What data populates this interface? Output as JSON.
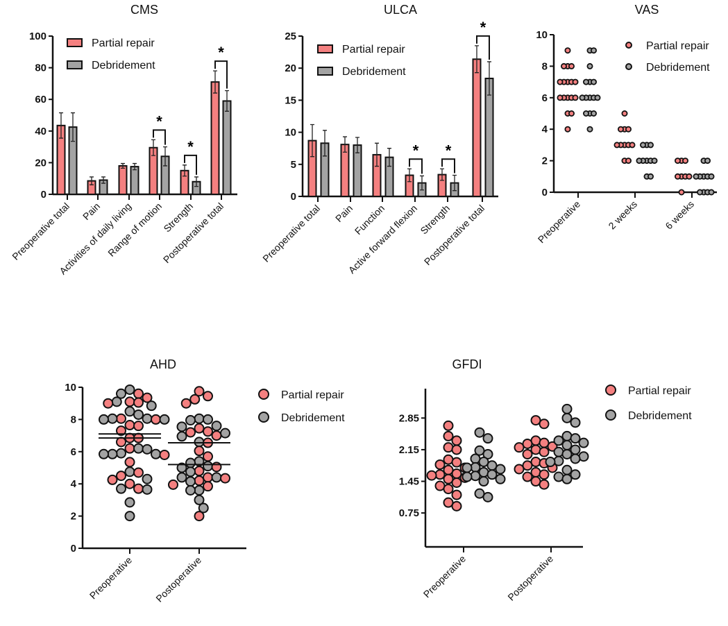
{
  "colors": {
    "partial_repair": "#f48080",
    "debridement": "#a3a3a3",
    "outline": "#111111"
  },
  "legend": [
    "Partial repair",
    "Debridement"
  ],
  "significance_mark": "*",
  "chart_data": [
    {
      "id": "cms",
      "type": "bar",
      "title": "CMS",
      "ylim": [
        0,
        100
      ],
      "yticks": [
        0,
        20,
        40,
        60,
        80,
        100
      ],
      "categories": [
        "Preoperative total",
        "Pain",
        "Activities of daily living",
        "Range of motion",
        "Strength",
        "Postoperative total"
      ],
      "series": [
        {
          "name": "Partial repair",
          "values": [
            43.5,
            8.5,
            18,
            29.5,
            15,
            71
          ],
          "errors": [
            8,
            2.5,
            1.5,
            5,
            3.5,
            7
          ]
        },
        {
          "name": "Debridement",
          "values": [
            42.5,
            9,
            17.5,
            24,
            8,
            59
          ],
          "errors": [
            9,
            2,
            2,
            6,
            3,
            6.5
          ]
        }
      ],
      "significant": [
        false,
        false,
        false,
        true,
        true,
        true
      ]
    },
    {
      "id": "ulca",
      "type": "bar",
      "title": "ULCA",
      "ylim": [
        0,
        25
      ],
      "yticks": [
        0,
        5,
        10,
        15,
        20,
        25
      ],
      "categories": [
        "Preoperative total",
        "Pain",
        "Function",
        "Active forward flexion",
        "Strength",
        "Postoperative total"
      ],
      "series": [
        {
          "name": "Partial repair",
          "values": [
            8.7,
            8.1,
            6.5,
            3.3,
            3.4,
            21.4
          ],
          "errors": [
            2.5,
            1.2,
            1.8,
            1.0,
            0.9,
            2.1
          ]
        },
        {
          "name": "Debridement",
          "values": [
            8.3,
            8.0,
            6.1,
            2.1,
            2.1,
            18.4
          ],
          "errors": [
            2.0,
            1.2,
            1.4,
            1.1,
            1.2,
            2.6
          ]
        }
      ],
      "significant": [
        false,
        false,
        false,
        true,
        true,
        true
      ]
    },
    {
      "id": "vas",
      "type": "scatter",
      "title": "VAS",
      "ylim": [
        0,
        10
      ],
      "yticks": [
        0,
        2,
        4,
        6,
        8,
        10
      ],
      "categories": [
        "Preoperative",
        "2 weeks",
        "6 weeks"
      ],
      "series": [
        {
          "name": "Partial repair",
          "values": [
            [
              9,
              8,
              8,
              8,
              7,
              7,
              7,
              7,
              7,
              6,
              6,
              6,
              6,
              6,
              5,
              5,
              4
            ],
            [
              5,
              4,
              4,
              4,
              3,
              3,
              3,
              3,
              3,
              2,
              2
            ],
            [
              2,
              2,
              2,
              1,
              1,
              1,
              1,
              0
            ]
          ]
        },
        {
          "name": "Debridement",
          "values": [
            [
              9,
              9,
              8,
              7,
              7,
              7,
              6,
              6,
              6,
              6,
              6,
              5,
              5,
              5,
              4
            ],
            [
              3,
              3,
              3,
              2,
              2,
              2,
              2,
              2,
              1,
              1
            ],
            [
              2,
              2,
              1,
              1,
              1,
              1,
              1,
              0,
              0,
              0,
              0
            ]
          ]
        }
      ]
    },
    {
      "id": "ahd",
      "type": "scatter",
      "title": "AHD",
      "ylim": [
        0,
        10
      ],
      "yticks": [
        0,
        2,
        4,
        6,
        8,
        10
      ],
      "categories": [
        "Preoperative",
        "Postoperative"
      ],
      "series": [
        {
          "name": "Partial repair",
          "means": [
            6.85,
            6.55
          ],
          "values": [
            [
              9.6,
              9.35,
              9.1,
              9.05,
              9.0,
              8.05,
              8.0,
              7.65,
              7.6,
              7.3,
              6.85,
              6.85,
              6.6,
              6.2,
              5.8,
              5.35,
              4.7,
              4.5,
              4.25,
              4.0,
              3.7
            ],
            [
              9.75,
              9.45,
              9.25,
              9.0,
              7.45,
              7.25,
              7.2,
              7.0,
              6.55,
              6.05,
              5.7,
              5.05,
              4.8,
              4.4,
              4.35,
              4.2,
              3.95,
              3.85,
              2.0
            ]
          ]
        },
        {
          "name": "Debridement",
          "means": [
            7.1,
            5.2
          ],
          "values": [
            [
              9.85,
              9.6,
              9.1,
              8.85,
              8.5,
              8.3,
              8.05,
              8.0,
              8.0,
              8.05,
              6.15,
              6.2,
              5.85,
              5.85,
              5.9,
              5.85,
              4.75,
              4.3,
              3.7,
              3.65,
              2.85,
              2.0
            ],
            [
              8.05,
              8.0,
              7.95,
              7.6,
              7.55,
              7.15,
              6.95,
              6.6,
              5.4,
              5.3,
              5.1,
              5.0,
              4.75,
              4.4,
              4.4,
              4.15,
              3.6,
              3.6,
              3.0,
              2.5
            ]
          ]
        }
      ]
    },
    {
      "id": "gfdi",
      "type": "scatter",
      "title": "GFDI",
      "ylim": [
        0,
        3.5
      ],
      "yticks": [
        0.75,
        1.45,
        2.15,
        2.85
      ],
      "categories": [
        "Preoperative",
        "Postoperative"
      ],
      "series": [
        {
          "name": "Partial repair",
          "values": [
            [
              2.68,
              2.45,
              2.35,
              2.2,
              2.15,
              1.93,
              1.87,
              1.82,
              1.75,
              1.7,
              1.62,
              1.6,
              1.58,
              1.53,
              1.5,
              1.42,
              1.35,
              1.28,
              1.15,
              0.98,
              0.9
            ],
            [
              2.8,
              2.72,
              2.35,
              2.3,
              2.28,
              2.22,
              2.2,
              2.15,
              2.1,
              2.05,
              1.88,
              1.85,
              1.8,
              1.75,
              1.72,
              1.65,
              1.6,
              1.55,
              1.45,
              1.38
            ]
          ]
        },
        {
          "name": "Debridement",
          "values": [
            [
              2.53,
              2.4,
              2.13,
              2.05,
              1.95,
              1.88,
              1.8,
              1.76,
              1.75,
              1.72,
              1.65,
              1.6,
              1.57,
              1.55,
              1.5,
              1.45,
              1.18,
              1.1
            ],
            [
              3.05,
              2.85,
              2.75,
              2.45,
              2.4,
              2.35,
              2.3,
              2.25,
              2.15,
              2.1,
              2.05,
              2.0,
              1.95,
              1.9,
              1.88,
              1.7,
              1.6,
              1.55,
              1.5
            ]
          ]
        }
      ]
    }
  ]
}
